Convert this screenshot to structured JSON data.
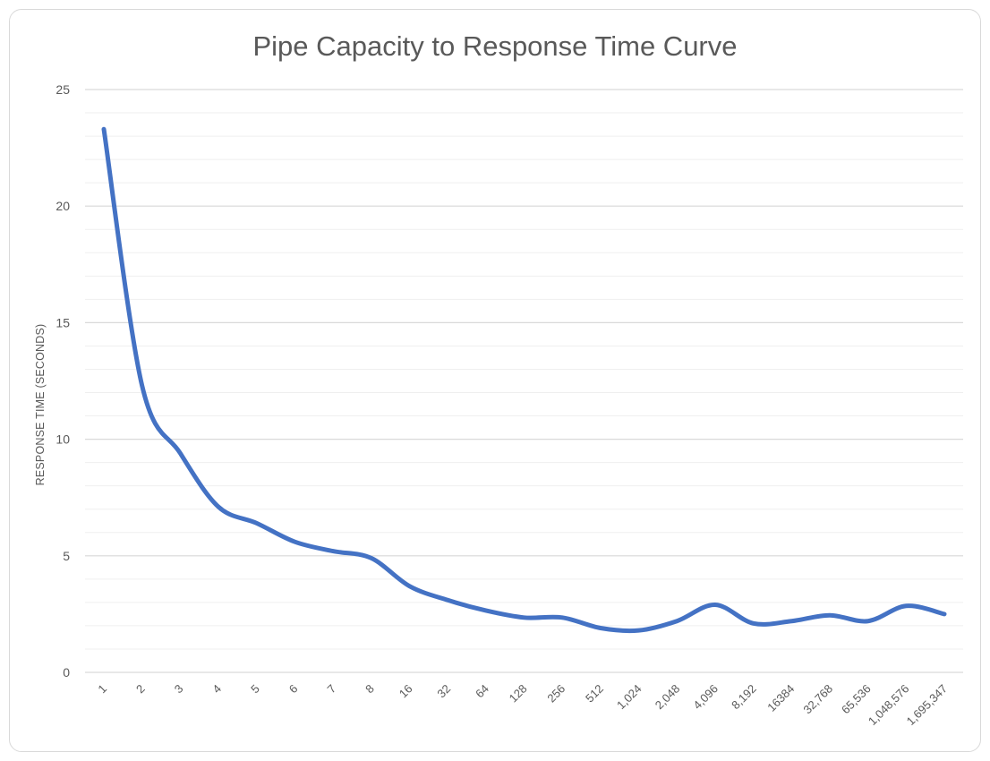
{
  "chart_data": {
    "type": "line",
    "title": "Pipe Capacity to Response Time Curve",
    "xlabel": "",
    "ylabel": "RESPONSE TIME (SECONDS)",
    "categories": [
      "1",
      "2",
      "3",
      "4",
      "5",
      "6",
      "7",
      "8",
      "16",
      "32",
      "64",
      "128",
      "256",
      "512",
      "1,024",
      "2,048",
      "4,096",
      "8,192",
      "16384",
      "32,768",
      "65,536",
      "1,048,576",
      "1,695,347"
    ],
    "series": [
      {
        "values": [
          23.3,
          12.3,
          9.4,
          7.1,
          6.4,
          5.6,
          5.2,
          4.9,
          3.7,
          3.1,
          2.65,
          2.35,
          2.35,
          1.9,
          1.8,
          2.2,
          2.9,
          2.1,
          2.2,
          2.45,
          2.2,
          2.85,
          2.5
        ],
        "color": "#4472c4"
      }
    ],
    "ylim": [
      0,
      25
    ],
    "yticks": [
      0,
      5,
      10,
      15,
      20,
      25
    ],
    "grid": true,
    "minor_grid": true,
    "legend": "none"
  }
}
